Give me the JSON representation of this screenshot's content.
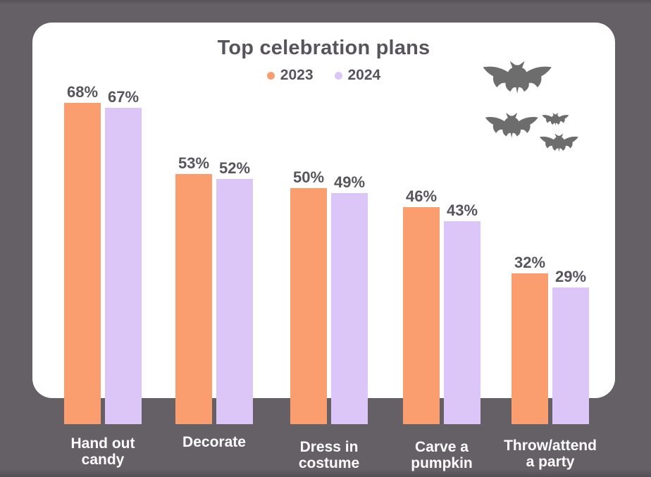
{
  "page": {
    "background_color": "#646066",
    "card_color": "#FFFFFF"
  },
  "chart": {
    "title_color": "#57545C",
    "value_label_color": "#57545C",
    "category_label_color": "#FFFFFF"
  },
  "decorations": {
    "bat_icon_color": "#6D6D6D",
    "bat_count": 4
  },
  "chart_data": {
    "type": "bar",
    "title": "Top celebration plans",
    "xlabel": "",
    "ylabel": "",
    "ylim": [
      0,
      100
    ],
    "grid": false,
    "legend_position": "top-center",
    "value_format": "percent",
    "categories": [
      "Hand out candy",
      "Decorate",
      "Dress in costume",
      "Carve a pumpkin",
      "Throw/attend a party"
    ],
    "category_lines": [
      [
        "Hand out",
        "candy"
      ],
      [
        "Decorate"
      ],
      [
        "Dress in",
        "costume"
      ],
      [
        "Carve a",
        "pumpkin"
      ],
      [
        "Throw/attend",
        "a party"
      ]
    ],
    "series": [
      {
        "name": "2023",
        "color": "#FA9E70",
        "values": [
          68,
          53,
          50,
          46,
          32
        ]
      },
      {
        "name": "2024",
        "color": "#DCC6F8",
        "values": [
          67,
          52,
          49,
          43,
          29
        ]
      }
    ],
    "value_labels": {
      "2023": [
        "68%",
        "53%",
        "50%",
        "46%",
        "32%"
      ],
      "2024": [
        "67%",
        "52%",
        "49%",
        "43%",
        "29%"
      ]
    }
  }
}
